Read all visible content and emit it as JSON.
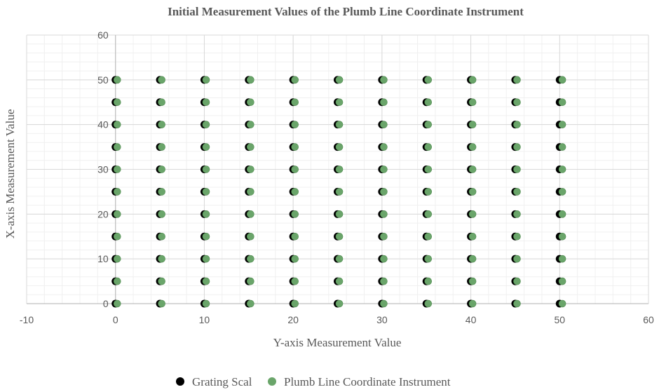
{
  "chart_data": {
    "type": "scatter",
    "title": "Initial Measurement Values of the Plumb Line Coordinate Instrument",
    "xlabel": "Y-axis Measurement Value",
    "ylabel": "X-axis Measurement Value",
    "xlim": [
      -10,
      60
    ],
    "ylim": [
      0,
      60
    ],
    "xticks": [
      "-10",
      "0",
      "10",
      "20",
      "30",
      "40",
      "50",
      "60"
    ],
    "yticks": [
      "0",
      "10",
      "20",
      "30",
      "40",
      "50",
      "60"
    ],
    "grid": true,
    "legend_position": "bottom",
    "series": [
      {
        "name": "Grating Scal",
        "color": "#000000",
        "grid_x": [
          0,
          5,
          10,
          15,
          20,
          25,
          30,
          35,
          40,
          45,
          50
        ],
        "grid_y": [
          0,
          5,
          10,
          15,
          20,
          25,
          30,
          35,
          40,
          45,
          50
        ]
      },
      {
        "name": "Plumb Line Coordinate Instrument",
        "color": "#6aa56a",
        "grid_x": [
          0.2,
          5.2,
          10.2,
          15.2,
          20.2,
          25.2,
          30.2,
          35.2,
          40.2,
          45.2,
          50.3
        ],
        "grid_y": [
          0,
          5,
          10,
          15,
          20,
          25,
          30,
          35,
          40,
          45,
          50
        ]
      }
    ]
  }
}
